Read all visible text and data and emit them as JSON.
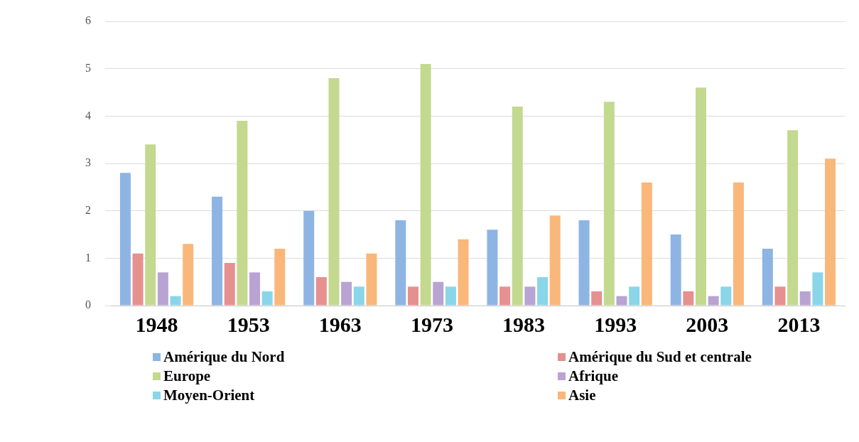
{
  "chart_data": {
    "type": "bar",
    "categories": [
      "1948",
      "1953",
      "1963",
      "1973",
      "1983",
      "1993",
      "2003",
      "2013"
    ],
    "series": [
      {
        "name": "Amérique du Nord",
        "color": "#8eb4e3",
        "values": [
          2.8,
          2.3,
          2.0,
          1.8,
          1.6,
          1.8,
          1.5,
          1.2
        ]
      },
      {
        "name": "Amérique du Sud et centrale",
        "color": "#e6908f",
        "values": [
          1.1,
          0.9,
          0.6,
          0.4,
          0.4,
          0.3,
          0.3,
          0.4
        ]
      },
      {
        "name": "Europe",
        "color": "#c3d98f",
        "values": [
          3.4,
          3.9,
          4.8,
          5.1,
          4.2,
          4.3,
          4.6,
          3.7
        ]
      },
      {
        "name": "Afrique",
        "color": "#b9a3d3",
        "values": [
          0.7,
          0.7,
          0.5,
          0.5,
          0.4,
          0.2,
          0.2,
          0.3
        ]
      },
      {
        "name": "Moyen-Orient",
        "color": "#8ad5e8",
        "values": [
          0.2,
          0.3,
          0.4,
          0.4,
          0.6,
          0.4,
          0.4,
          0.7
        ]
      },
      {
        "name": "Asie",
        "color": "#f9b77a",
        "values": [
          1.3,
          1.2,
          1.1,
          1.4,
          1.9,
          2.6,
          2.6,
          3.1
        ]
      }
    ],
    "ylim": [
      0,
      6
    ],
    "yticks": [
      0,
      1,
      2,
      3,
      4,
      5,
      6
    ],
    "grid": "y",
    "legend": "bottom"
  }
}
